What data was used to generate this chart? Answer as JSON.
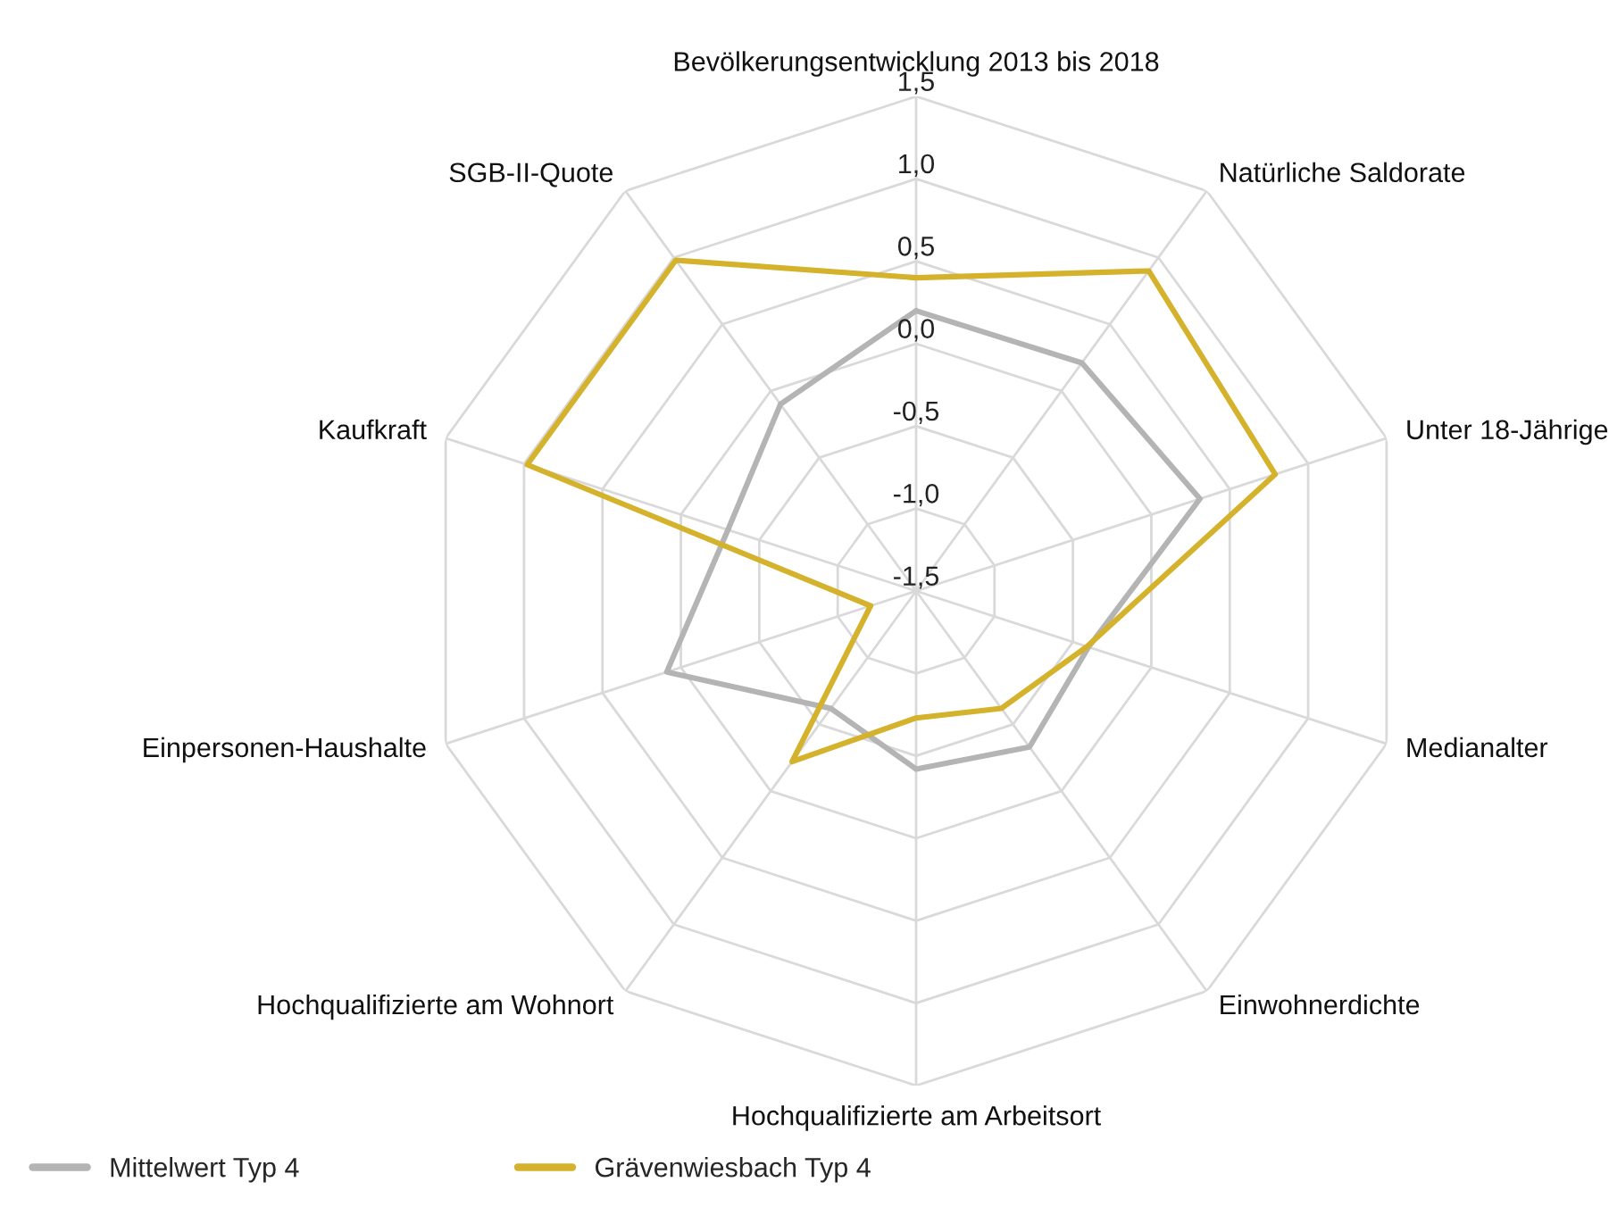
{
  "chart_data": {
    "type": "radar",
    "categories": [
      "Bevölkerungsentwicklung 2013 bis 2018",
      "Natürliche Saldorate",
      "Unter 18-Jährige",
      "Medianalter",
      "Einwohnerdichte",
      "Hochqualifizierte am Arbeitsort",
      "Hochqualifizierte am Wohnort",
      "Einpersonen-Haushalte",
      "Kaufkraft",
      "SGB-II-Quote"
    ],
    "series": [
      {
        "name": "Mittelwert Typ 4",
        "color": "#b4b4b4",
        "values": [
          0.2,
          0.21,
          0.31,
          -0.4,
          -0.33,
          -0.42,
          -0.62,
          0.09,
          -0.3,
          -0.1
        ]
      },
      {
        "name": "Grävenwiesbach Typ 4",
        "color": "#d4b22c",
        "values": [
          0.4,
          0.9,
          0.79,
          -0.41,
          -0.62,
          -0.73,
          -0.22,
          -1.21,
          0.98,
          0.98
        ]
      }
    ],
    "ylim": [
      -1.5,
      1.5
    ],
    "yticks": [
      {
        "value": -1.5,
        "label": "-1,5"
      },
      {
        "value": -1.0,
        "label": "-1,0"
      },
      {
        "value": -0.5,
        "label": "-0,5"
      },
      {
        "value": 0.0,
        "label": "0,0"
      },
      {
        "value": 0.5,
        "label": "0,5"
      },
      {
        "value": 1.0,
        "label": "1,0"
      },
      {
        "value": 1.5,
        "label": "1,5"
      }
    ],
    "grid": true,
    "legend": "bottom left",
    "marker": "none",
    "line_style": "solid"
  }
}
